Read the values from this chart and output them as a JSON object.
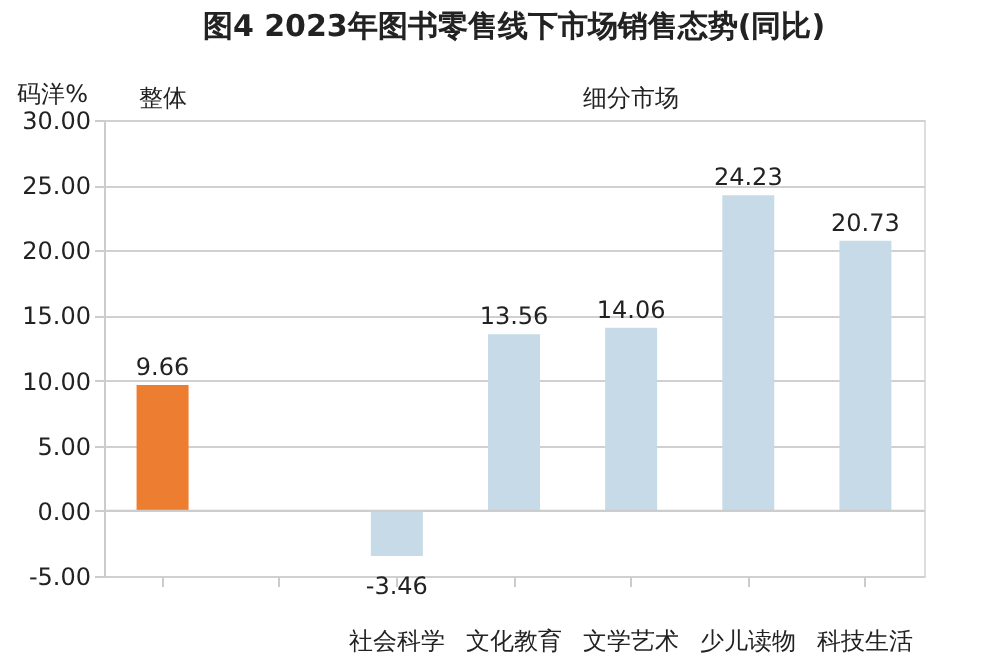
{
  "chart_data": {
    "type": "bar",
    "title": "图4  2023年图书零售线下市场销售态势(同比)",
    "ylabel": "码洋%",
    "categories": [
      null,
      null,
      "社会科学",
      "文化教育",
      "文学艺术",
      "少儿读物",
      "科技生活"
    ],
    "values": [
      9.66,
      null,
      -3.46,
      13.56,
      14.06,
      24.23,
      20.73
    ],
    "colors": [
      "#ed7d31",
      "#c6dbe7",
      "#c6dbe7",
      "#c6dbe7",
      "#c6dbe7",
      "#c6dbe7",
      "#c6dbe7"
    ],
    "ylim": [
      -5,
      30
    ],
    "yticks": [
      {
        "value": -5,
        "label": "-5.00"
      },
      {
        "value": 0,
        "label": "0.00"
      },
      {
        "value": 5,
        "label": "5.00"
      },
      {
        "value": 10,
        "label": "10.00"
      },
      {
        "value": 15,
        "label": "15.00"
      },
      {
        "value": 20,
        "label": "20.00"
      },
      {
        "value": 25,
        "label": "25.00"
      },
      {
        "value": 30,
        "label": "30.00"
      }
    ],
    "grid": "y",
    "data_labels": true,
    "annotations": [
      "整体",
      "细分市场"
    ]
  }
}
